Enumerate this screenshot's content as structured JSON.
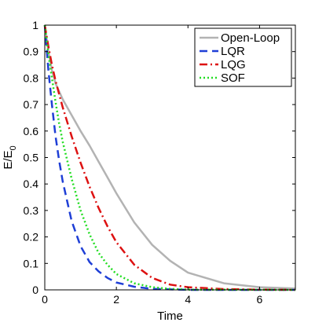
{
  "chart_data": {
    "type": "line",
    "title": "",
    "xlabel": "Time",
    "ylabel": "E/E",
    "ylabel_subscript": "0",
    "xlim": [
      0,
      7
    ],
    "ylim": [
      0,
      1
    ],
    "xticks": [
      0,
      2,
      4,
      6
    ],
    "yticks": [
      0,
      0.1,
      0.2,
      0.3,
      0.4,
      0.5,
      0.6,
      0.7,
      0.8,
      0.9,
      1
    ],
    "grid": false,
    "legend_position": "top-right",
    "series": [
      {
        "name": "Open-Loop",
        "color": "#b3b3b3",
        "style": "solid",
        "x": [
          0,
          0.1,
          0.2,
          0.3,
          0.5,
          0.75,
          1.0,
          1.25,
          1.5,
          1.75,
          2.0,
          2.5,
          3.0,
          3.5,
          4.0,
          5.0,
          6.0,
          7.0
        ],
        "y": [
          1.0,
          0.9,
          0.83,
          0.78,
          0.72,
          0.66,
          0.6,
          0.545,
          0.485,
          0.425,
          0.365,
          0.255,
          0.17,
          0.11,
          0.065,
          0.025,
          0.01,
          0.005
        ]
      },
      {
        "name": "LQR",
        "color": "#1f3fd6",
        "style": "dashed",
        "x": [
          0,
          0.1,
          0.2,
          0.3,
          0.4,
          0.5,
          0.75,
          1.0,
          1.25,
          1.5,
          1.75,
          2.0,
          2.5,
          3.0,
          4.0,
          7.0
        ],
        "y": [
          1.0,
          0.83,
          0.7,
          0.58,
          0.49,
          0.41,
          0.26,
          0.165,
          0.105,
          0.07,
          0.045,
          0.028,
          0.012,
          0.004,
          0.0,
          0.0
        ]
      },
      {
        "name": "LQG",
        "color": "#dd1111",
        "style": "dashdot",
        "x": [
          0,
          0.1,
          0.2,
          0.3,
          0.5,
          0.75,
          1.0,
          1.25,
          1.5,
          1.75,
          2.0,
          2.5,
          3.0,
          3.5,
          4.0,
          5.0,
          6.0,
          7.0
        ],
        "y": [
          1.0,
          0.92,
          0.85,
          0.79,
          0.69,
          0.58,
          0.48,
          0.39,
          0.31,
          0.24,
          0.18,
          0.095,
          0.045,
          0.02,
          0.01,
          0.003,
          0.001,
          0.0
        ]
      },
      {
        "name": "SOF",
        "color": "#22dd22",
        "style": "dotted",
        "x": [
          0,
          0.1,
          0.2,
          0.3,
          0.4,
          0.5,
          0.75,
          1.0,
          1.25,
          1.5,
          1.75,
          2.0,
          2.5,
          3.0,
          3.5,
          4.0,
          7.0
        ],
        "y": [
          1.0,
          0.89,
          0.8,
          0.71,
          0.63,
          0.56,
          0.42,
          0.3,
          0.21,
          0.14,
          0.095,
          0.06,
          0.025,
          0.01,
          0.004,
          0.001,
          0.0
        ]
      }
    ]
  }
}
